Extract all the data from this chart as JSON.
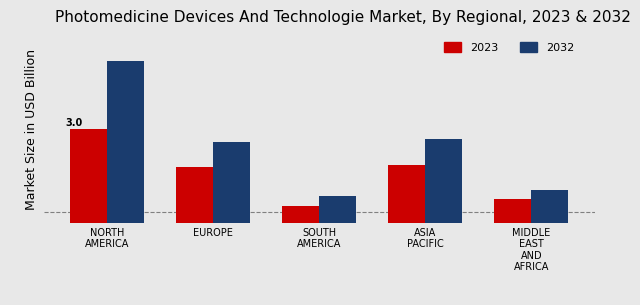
{
  "title": "Photomedicine Devices And Technologie Market, By Regional, 2023 & 2032",
  "ylabel": "Market Size in USD Billion",
  "categories": [
    "NORTH\nAMERICA",
    "EUROPE",
    "SOUTH\nAMERICA",
    "ASIA\nPACIFIC",
    "MIDDLE\nEAST\nAND\nAFRICA"
  ],
  "values_2023": [
    3.0,
    1.8,
    0.55,
    1.85,
    0.75
  ],
  "values_2032": [
    5.2,
    2.6,
    0.85,
    2.7,
    1.05
  ],
  "color_2023": "#cc0000",
  "color_2032": "#1a3c6e",
  "annotation_value": "3.0",
  "annotation_series": 0,
  "annotation_year": "2023",
  "bar_width": 0.35,
  "ylim": [
    0,
    6
  ],
  "background_color": "#e8e8e8",
  "legend_labels": [
    "2023",
    "2032"
  ],
  "title_fontsize": 11,
  "ylabel_fontsize": 9,
  "tick_fontsize": 7
}
